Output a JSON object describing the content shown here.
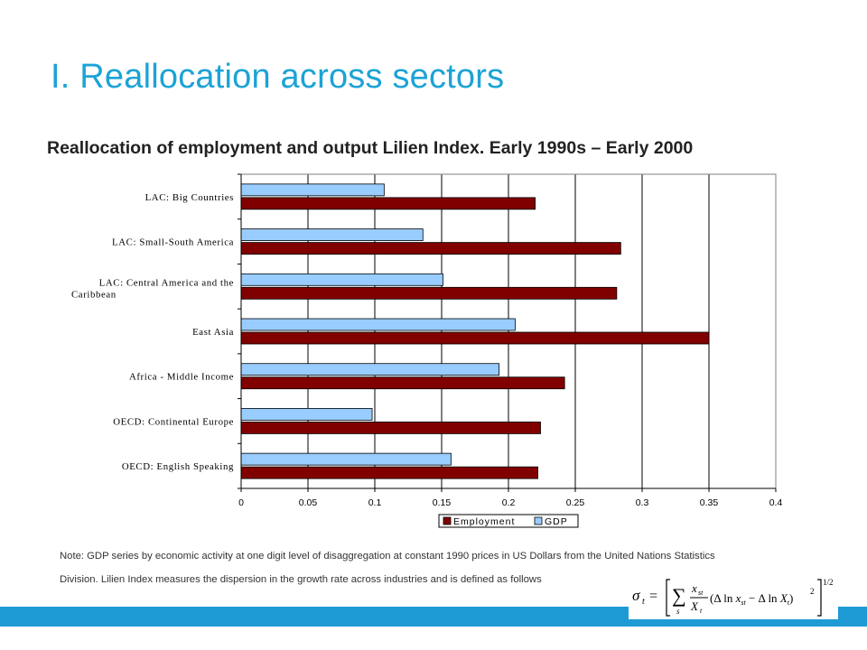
{
  "slide": {
    "title": "I. Reallocation across sectors",
    "accent_color": "#1ca3d6",
    "footer_color": "#1e9bd4",
    "note_line1": "Note: GDP series by economic activity at one digit level of disaggregation at constant 1990 prices in US Dollars from the United Nations Statistics",
    "note_line2": "Division. Lilien Index measures the dispersion in the growth rate across industries and is defined as follows"
  },
  "formula": {
    "lhs": "σ",
    "lhs_sub": "t",
    "sum_sub": "s",
    "frac_num": "x",
    "frac_num_sub": "st",
    "frac_den": "X",
    "frac_den_sub": "t",
    "body_open": "(Δ ln ",
    "body_x": "x",
    "body_x_sub": "st",
    "body_mid": " − Δ ln ",
    "body_X": "X",
    "body_X_sub": "t",
    "body_close": ")",
    "square": "2",
    "power": "1/2"
  },
  "chart_data": {
    "type": "bar",
    "orientation": "horizontal",
    "title": "Reallocation of employment and output Lilien Index. Early 1990s – Early 2000",
    "xlabel": "",
    "ylabel": "",
    "categories": [
      "LAC: Big Countries",
      "LAC: Small-South America",
      "LAC: Central America and the Caribbean",
      "East Asia",
      "Africa - Middle Income",
      "OECD: Continental Europe",
      "OECD: English Speaking"
    ],
    "category_lines": [
      [
        "LAC: Big Countries"
      ],
      [
        "LAC: Small-South America"
      ],
      [
        "LAC: Central America and the",
        "Caribbean"
      ],
      [
        "East Asia"
      ],
      [
        "Africa - Middle Income"
      ],
      [
        "OECD: Continental Europe"
      ],
      [
        "OECD: English Speaking"
      ]
    ],
    "series": [
      {
        "name": "Employment",
        "color": "#800000",
        "values": [
          0.22,
          0.284,
          0.281,
          0.35,
          0.242,
          0.224,
          0.222
        ]
      },
      {
        "name": "GDP",
        "color": "#99ccff",
        "values": [
          0.107,
          0.136,
          0.151,
          0.205,
          0.193,
          0.098,
          0.157
        ]
      }
    ],
    "xlim": [
      0,
      0.4
    ],
    "xticks": [
      0,
      0.05,
      0.1,
      0.15,
      0.2,
      0.25,
      0.3,
      0.35,
      0.4
    ],
    "xtick_labels": [
      "0",
      "0.05",
      "0.1",
      "0.15",
      "0.2",
      "0.25",
      "0.3",
      "0.35",
      "0.4"
    ],
    "grid": "vertical",
    "legend_position": "bottom"
  }
}
